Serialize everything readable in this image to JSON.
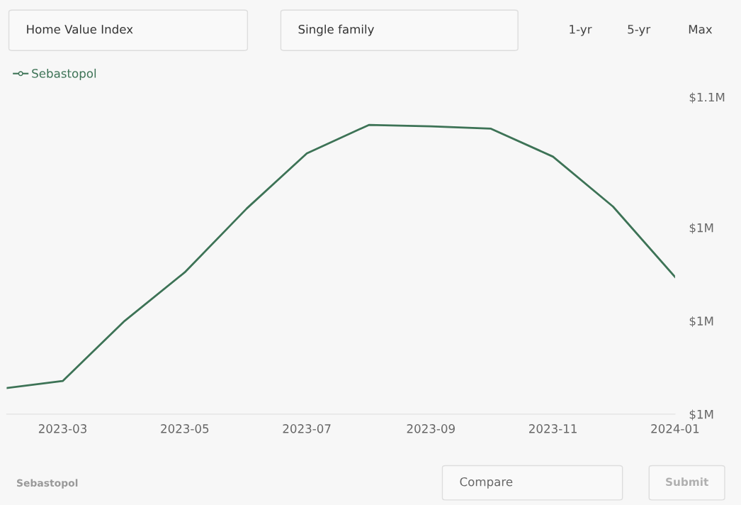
{
  "chart_data": {
    "type": "line",
    "x": [
      "2023-02",
      "2023-03",
      "2023-04",
      "2023-05",
      "2023-06",
      "2023-07",
      "2023-08",
      "2023-09",
      "2023-10",
      "2023-11",
      "2023-12",
      "2024-01"
    ],
    "series": [
      {
        "name": "Sebastopol",
        "color": "#3d7356",
        "values": [
          1005600,
          1007100,
          1020000,
          1030400,
          1044100,
          1055900,
          1062000,
          1061700,
          1061200,
          1055200,
          1044500,
          1029400
        ]
      }
    ],
    "xlim": [
      "2023-02",
      "2024-01"
    ],
    "xticks": [
      {
        "value": "2023-03",
        "label": "2023-03"
      },
      {
        "value": "2023-05",
        "label": "2023-05"
      },
      {
        "value": "2023-07",
        "label": "2023-07"
      },
      {
        "value": "2023-09",
        "label": "2023-09"
      },
      {
        "value": "2023-11",
        "label": "2023-11"
      },
      {
        "value": "2024-01",
        "label": "2024-01"
      }
    ],
    "ylim": [
      1000000,
      1068000
    ],
    "yticks": [
      {
        "value": 1000000,
        "label": "$1M"
      },
      {
        "value": 1020000,
        "label": "$1M"
      },
      {
        "value": 1040000,
        "label": "$1M"
      },
      {
        "value": 1068000,
        "label": "$1.1M"
      }
    ],
    "legend": "top left",
    "grid": false,
    "line_style": "solid",
    "annotations": [
      "Home Value Index",
      "Single family",
      "1-yr",
      "5-yr",
      "Max",
      "Sebastopol",
      "Compare",
      "Submit"
    ]
  }
}
